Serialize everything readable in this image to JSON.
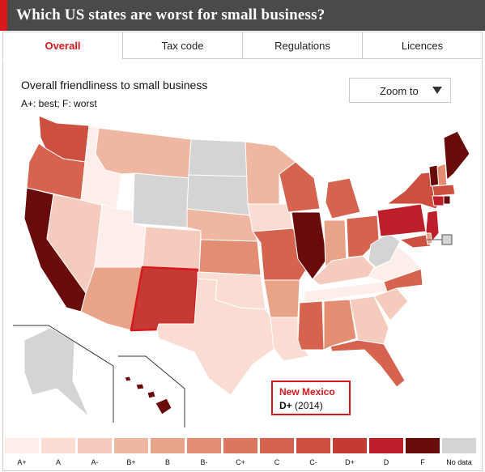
{
  "header": {
    "title": "Which US states are worst for small business?",
    "accent_color": "#d7191c"
  },
  "tabs": [
    {
      "label": "Overall",
      "active": true
    },
    {
      "label": "Tax code",
      "active": false
    },
    {
      "label": "Regulations",
      "active": false
    },
    {
      "label": "Licences",
      "active": false
    }
  ],
  "map": {
    "title": "Overall friendliness to small business",
    "note": "A+: best; F: worst",
    "zoom_label": "Zoom to",
    "selected": {
      "state": "New Mexico",
      "grade": "D+",
      "year": "(2014)"
    }
  },
  "legend": {
    "items": [
      {
        "label": "A+",
        "color": "#fdeeea"
      },
      {
        "label": "A",
        "color": "#fadcd3"
      },
      {
        "label": "A-",
        "color": "#f5cbbd"
      },
      {
        "label": "B+",
        "color": "#efb7a2"
      },
      {
        "label": "B",
        "color": "#e9a389"
      },
      {
        "label": "B-",
        "color": "#e38d73"
      },
      {
        "label": "C+",
        "color": "#dc775f"
      },
      {
        "label": "C",
        "color": "#d5634e"
      },
      {
        "label": "C-",
        "color": "#cd4f40"
      },
      {
        "label": "D+",
        "color": "#c63a35"
      },
      {
        "label": "D",
        "color": "#bc1f2a"
      },
      {
        "label": "F",
        "color": "#6a0b0b"
      },
      {
        "label": "No data",
        "color": "#d4d4d4"
      }
    ]
  }
}
